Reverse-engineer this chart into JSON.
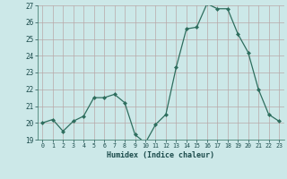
{
  "x": [
    0,
    1,
    2,
    3,
    4,
    5,
    6,
    7,
    8,
    9,
    10,
    11,
    12,
    13,
    14,
    15,
    16,
    17,
    18,
    19,
    20,
    21,
    22,
    23
  ],
  "y": [
    20.0,
    20.2,
    19.5,
    20.1,
    20.4,
    21.5,
    21.5,
    21.7,
    21.2,
    19.3,
    18.8,
    19.9,
    20.5,
    23.3,
    25.6,
    25.7,
    27.1,
    26.8,
    26.8,
    25.3,
    24.2,
    22.0,
    20.5,
    20.1
  ],
  "xlabel": "Humidex (Indice chaleur)",
  "ylim": [
    19,
    27
  ],
  "xlim": [
    -0.5,
    23.5
  ],
  "yticks": [
    19,
    20,
    21,
    22,
    23,
    24,
    25,
    26,
    27
  ],
  "xticks": [
    0,
    1,
    2,
    3,
    4,
    5,
    6,
    7,
    8,
    9,
    10,
    11,
    12,
    13,
    14,
    15,
    16,
    17,
    18,
    19,
    20,
    21,
    22,
    23
  ],
  "line_color": "#2e6e5e",
  "bg_color": "#cce8e8",
  "grid_color": "#b8a8a8",
  "tick_color": "#1a4a4a",
  "label_color": "#1a4a4a"
}
